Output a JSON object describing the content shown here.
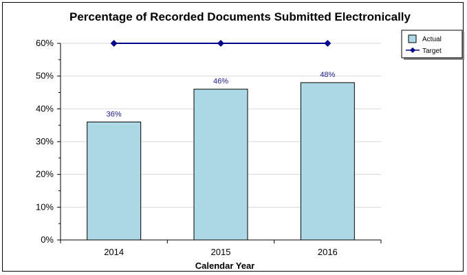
{
  "chart_data": {
    "type": "bar",
    "title": "Percentage of Recorded Documents Submitted Electronically",
    "xlabel": "Calendar Year",
    "ylabel": "",
    "categories": [
      "2014",
      "2015",
      "2016"
    ],
    "ylim": [
      0,
      60
    ],
    "yticks": [
      "0%",
      "10%",
      "20%",
      "30%",
      "40%",
      "50%",
      "60%"
    ],
    "grid": true,
    "legend_position": "top-right",
    "series": [
      {
        "name": "Actual",
        "type": "bar",
        "values": [
          36,
          46,
          48
        ],
        "labels": [
          "36%",
          "46%",
          "48%"
        ],
        "color": "#add8e6"
      },
      {
        "name": "Target",
        "type": "line",
        "values": [
          60,
          60,
          60
        ],
        "color": "#00008b"
      }
    ]
  }
}
